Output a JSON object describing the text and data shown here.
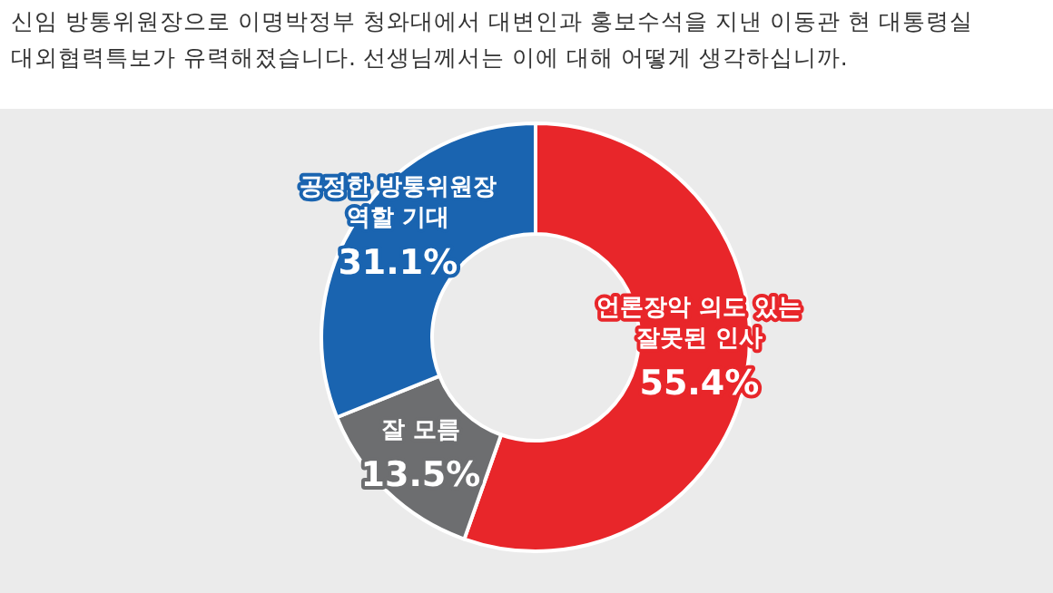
{
  "chart_data": {
    "type": "donut",
    "title": "신임 방통위원장으로 이명박정부 청와대에서 대변인과 홍보수석을 지낸 이동관 현 대통령실 대외협력특보가 유력해졌습니다. 선생님께서는 이에 대해 어떻게 생각하십니까.",
    "categories": [
      "언론장악 의도 있는\n잘못된 인사",
      "잘 모름",
      "공정한 방통위원장\n역할 기대"
    ],
    "values": [
      55.4,
      13.5,
      31.1
    ],
    "colors": [
      "#e8262a",
      "#6d6e70",
      "#1a64b0"
    ],
    "value_labels": [
      "55.4%",
      "13.5%",
      "31.1%"
    ]
  }
}
